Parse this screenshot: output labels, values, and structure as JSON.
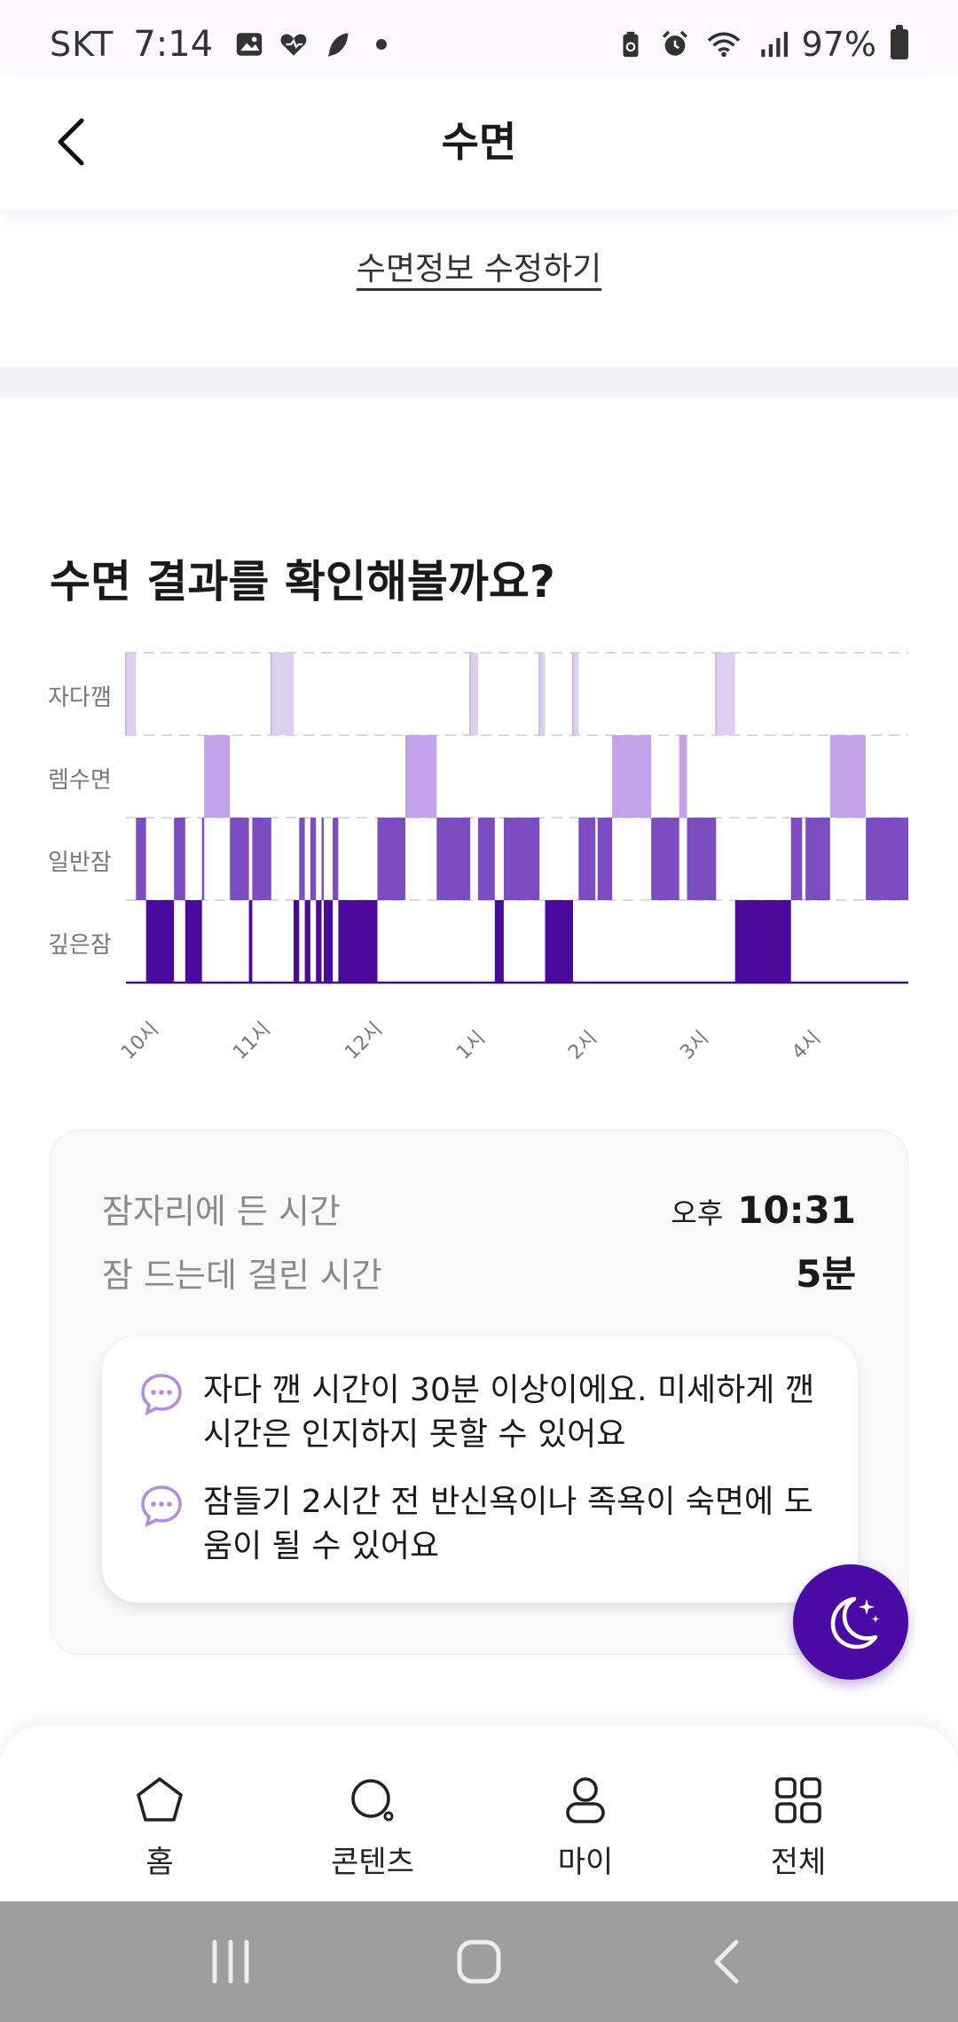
{
  "status_bar": {
    "carrier": "SKT",
    "time": "7:14",
    "battery": "97%",
    "icons_left": [
      "gallery-icon",
      "heart-icon",
      "feather-icon"
    ],
    "icons_right": [
      "battery-saver-icon",
      "alarm-icon",
      "wifi-icon",
      "signal-icon",
      "battery-icon"
    ]
  },
  "header": {
    "title": "수면",
    "back_icon": "chevron-left-icon"
  },
  "edit_link": "수면정보 수정하기",
  "section_title": "수면 결과를 확인해볼까요?",
  "chart_data": {
    "type": "bar",
    "subtype": "sleep-hypnogram",
    "stages": [
      "자다깸",
      "렘수면",
      "일반잠",
      "깊은잠"
    ],
    "x_ticks": [
      "10시",
      "11시",
      "12시",
      "1시",
      "2시",
      "3시",
      "4시"
    ],
    "x_start_hour": 22,
    "x_end_hour": 29,
    "tick_hours": [
      22,
      23,
      24,
      25,
      26,
      27,
      28
    ],
    "stage_colors": {
      "자다깸": "#ddd0ef",
      "렘수면": "#c2a2e8",
      "일반잠": "#7c4cc1",
      "깊은잠": "#4a0a9c"
    },
    "segments": [
      {
        "stage": "자다깸",
        "start": 22.0,
        "end": 22.09
      },
      {
        "stage": "일반잠",
        "start": 22.09,
        "end": 22.18
      },
      {
        "stage": "깊은잠",
        "start": 22.18,
        "end": 22.43
      },
      {
        "stage": "일반잠",
        "start": 22.43,
        "end": 22.53
      },
      {
        "stage": "깊은잠",
        "start": 22.53,
        "end": 22.68
      },
      {
        "stage": "일반잠",
        "start": 22.68,
        "end": 22.7
      },
      {
        "stage": "렘수면",
        "start": 22.7,
        "end": 22.93
      },
      {
        "stage": "일반잠",
        "start": 22.93,
        "end": 23.1
      },
      {
        "stage": "깊은잠",
        "start": 23.1,
        "end": 23.13
      },
      {
        "stage": "일반잠",
        "start": 23.13,
        "end": 23.3
      },
      {
        "stage": "자다깸",
        "start": 23.3,
        "end": 23.5
      },
      {
        "stage": "깊은잠",
        "start": 23.5,
        "end": 23.55
      },
      {
        "stage": "일반잠",
        "start": 23.55,
        "end": 23.6
      },
      {
        "stage": "깊은잠",
        "start": 23.6,
        "end": 23.65
      },
      {
        "stage": "일반잠",
        "start": 23.65,
        "end": 23.7
      },
      {
        "stage": "깊은잠",
        "start": 23.7,
        "end": 23.75
      },
      {
        "stage": "일반잠",
        "start": 23.75,
        "end": 23.77
      },
      {
        "stage": "깊은잠",
        "start": 23.77,
        "end": 23.85
      },
      {
        "stage": "일반잠",
        "start": 23.85,
        "end": 23.9
      },
      {
        "stage": "깊은잠",
        "start": 23.9,
        "end": 24.25
      },
      {
        "stage": "일반잠",
        "start": 24.25,
        "end": 24.5
      },
      {
        "stage": "렘수면",
        "start": 24.5,
        "end": 24.78
      },
      {
        "stage": "일반잠",
        "start": 24.78,
        "end": 25.08
      },
      {
        "stage": "자다깸",
        "start": 25.08,
        "end": 25.15
      },
      {
        "stage": "일반잠",
        "start": 25.15,
        "end": 25.3
      },
      {
        "stage": "깊은잠",
        "start": 25.3,
        "end": 25.38
      },
      {
        "stage": "일반잠",
        "start": 25.38,
        "end": 25.7
      },
      {
        "stage": "자다깸",
        "start": 25.7,
        "end": 25.75
      },
      {
        "stage": "깊은잠",
        "start": 25.75,
        "end": 26.0
      },
      {
        "stage": "자다깸",
        "start": 26.0,
        "end": 26.05
      },
      {
        "stage": "일반잠",
        "start": 26.05,
        "end": 26.2
      },
      {
        "stage": "일반잠",
        "start": 26.22,
        "end": 26.35
      },
      {
        "stage": "렘수면",
        "start": 26.35,
        "end": 26.7
      },
      {
        "stage": "일반잠",
        "start": 26.7,
        "end": 26.95
      },
      {
        "stage": "렘수면",
        "start": 26.95,
        "end": 27.02
      },
      {
        "stage": "일반잠",
        "start": 27.02,
        "end": 27.28
      },
      {
        "stage": "자다깸",
        "start": 27.28,
        "end": 27.45
      },
      {
        "stage": "깊은잠",
        "start": 27.45,
        "end": 27.95
      },
      {
        "stage": "일반잠",
        "start": 27.95,
        "end": 28.05
      },
      {
        "stage": "일반잠",
        "start": 28.08,
        "end": 28.3
      },
      {
        "stage": "렘수면",
        "start": 28.3,
        "end": 28.62
      },
      {
        "stage": "일반잠",
        "start": 28.62,
        "end": 29.0
      }
    ]
  },
  "summary": {
    "bed_time_label": "잠자리에 든 시간",
    "bed_time_ampm": "오후",
    "bed_time_value": "10:31",
    "sleep_latency_label": "잠 드는데 걸린 시간",
    "sleep_latency_value": "5분"
  },
  "tips": [
    {
      "icon": "chat-bubble-icon",
      "text": "자다 깬 시간이 30분 이상이에요. 미세하게 깬 시간은 인지하지 못할 수 있어요"
    },
    {
      "icon": "chat-bubble-icon",
      "text": "잠들기 2시간 전 반신욕이나 족욕이 숙면에 도움이 될 수 있어요"
    }
  ],
  "fab": {
    "icon": "moon-stars-icon",
    "color": "#4b0aa6"
  },
  "bottom_nav": [
    {
      "label": "홈",
      "icon": "home-icon"
    },
    {
      "label": "콘텐츠",
      "icon": "search-icon"
    },
    {
      "label": "마이",
      "icon": "person-icon"
    },
    {
      "label": "전체",
      "icon": "grid-icon"
    }
  ],
  "system_nav": [
    "recent-apps-icon",
    "home-button-icon",
    "back-icon"
  ]
}
